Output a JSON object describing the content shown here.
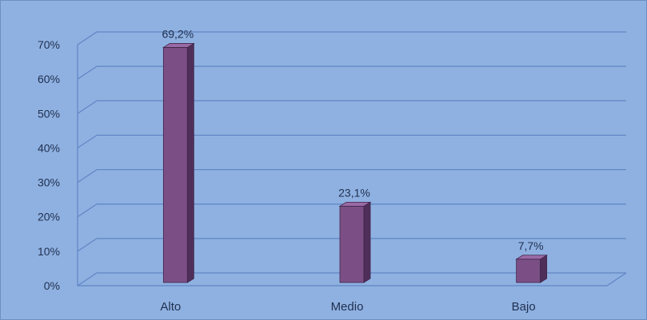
{
  "chart_data": {
    "type": "bar",
    "categories": [
      "Alto",
      "Medio",
      "Bajo"
    ],
    "values": [
      69.2,
      23.1,
      7.7
    ],
    "data_labels": [
      "69,2%",
      "23,1%",
      "7,7%"
    ],
    "y_ticks": [
      "0%",
      "10%",
      "20%",
      "30%",
      "40%",
      "50%",
      "60%",
      "70%"
    ],
    "ylim": [
      0,
      70
    ],
    "grid": true,
    "three_d": true,
    "colors": {
      "background": "#8fb1e1",
      "bar_front": "#7b4f86",
      "bar_side": "#4f2f5a",
      "bar_top": "#9a6aa6",
      "gridline": "#5f85c4",
      "text": "#1f2f4f"
    }
  }
}
